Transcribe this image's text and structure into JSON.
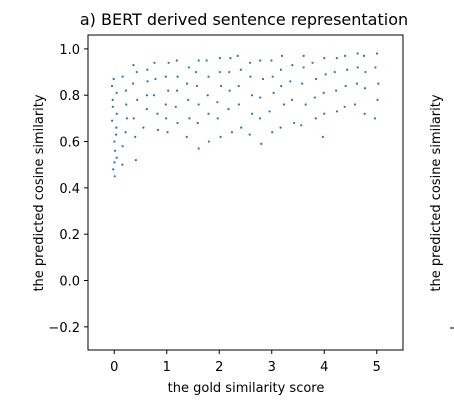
{
  "chart_data": {
    "type": "scatter",
    "title": "a) BERT derived sentence representation",
    "xlabel": "the gold similarity score",
    "ylabel": "the predicted cosine similarity",
    "xlim": [
      -0.5,
      5.5
    ],
    "ylim": [
      -0.3,
      1.06
    ],
    "xticks": [
      0,
      1,
      2,
      3,
      4,
      5
    ],
    "yticks": [
      -0.2,
      0.0,
      0.2,
      0.4,
      0.6,
      0.8,
      1.0
    ],
    "xtick_labels": [
      "0",
      "1",
      "2",
      "3",
      "4",
      "5"
    ],
    "ytick_labels": [
      "−0.2",
      "0.0",
      "0.2",
      "0.4",
      "0.6",
      "0.8",
      "1.0"
    ],
    "grid": false,
    "marker_color": "#1f77b4",
    "series": [
      {
        "points": [
          [
            0.0,
            0.45
          ],
          [
            0.0,
            0.48
          ],
          [
            0.0,
            0.51
          ],
          [
            0.0,
            0.53
          ],
          [
            0.0,
            0.56
          ],
          [
            0.0,
            0.6
          ],
          [
            0.0,
            0.63
          ],
          [
            0.0,
            0.66
          ],
          [
            0.0,
            0.69
          ],
          [
            0.0,
            0.72
          ],
          [
            0.0,
            0.75
          ],
          [
            0.0,
            0.78
          ],
          [
            0.0,
            0.81
          ],
          [
            0.0,
            0.84
          ],
          [
            0.0,
            0.87
          ],
          [
            0.2,
            0.5
          ],
          [
            0.2,
            0.58
          ],
          [
            0.2,
            0.64
          ],
          [
            0.2,
            0.7
          ],
          [
            0.2,
            0.76
          ],
          [
            0.2,
            0.82
          ],
          [
            0.2,
            0.88
          ],
          [
            0.4,
            0.52
          ],
          [
            0.4,
            0.62
          ],
          [
            0.4,
            0.7
          ],
          [
            0.4,
            0.78
          ],
          [
            0.4,
            0.85
          ],
          [
            0.4,
            0.9
          ],
          [
            0.4,
            0.93
          ],
          [
            0.6,
            0.66
          ],
          [
            0.6,
            0.74
          ],
          [
            0.6,
            0.8
          ],
          [
            0.6,
            0.86
          ],
          [
            0.6,
            0.91
          ],
          [
            0.8,
            0.65
          ],
          [
            0.8,
            0.72
          ],
          [
            0.8,
            0.8
          ],
          [
            0.8,
            0.87
          ],
          [
            0.8,
            0.94
          ],
          [
            1.0,
            0.64
          ],
          [
            1.0,
            0.7
          ],
          [
            1.0,
            0.76
          ],
          [
            1.0,
            0.82
          ],
          [
            1.0,
            0.88
          ],
          [
            1.0,
            0.94
          ],
          [
            1.2,
            0.68
          ],
          [
            1.2,
            0.75
          ],
          [
            1.2,
            0.82
          ],
          [
            1.2,
            0.88
          ],
          [
            1.2,
            0.95
          ],
          [
            1.4,
            0.62
          ],
          [
            1.4,
            0.7
          ],
          [
            1.4,
            0.78
          ],
          [
            1.4,
            0.85
          ],
          [
            1.4,
            0.92
          ],
          [
            1.6,
            0.57
          ],
          [
            1.6,
            0.68
          ],
          [
            1.6,
            0.76
          ],
          [
            1.6,
            0.84
          ],
          [
            1.6,
            0.9
          ],
          [
            1.6,
            0.95
          ],
          [
            1.8,
            0.6
          ],
          [
            1.8,
            0.72
          ],
          [
            1.8,
            0.8
          ],
          [
            1.8,
            0.88
          ],
          [
            1.8,
            0.95
          ],
          [
            2.0,
            0.62
          ],
          [
            2.0,
            0.7
          ],
          [
            2.0,
            0.77
          ],
          [
            2.0,
            0.84
          ],
          [
            2.0,
            0.9
          ],
          [
            2.0,
            0.96
          ],
          [
            2.2,
            0.64
          ],
          [
            2.2,
            0.74
          ],
          [
            2.2,
            0.82
          ],
          [
            2.2,
            0.9
          ],
          [
            2.2,
            0.96
          ],
          [
            2.4,
            0.66
          ],
          [
            2.4,
            0.76
          ],
          [
            2.4,
            0.84
          ],
          [
            2.4,
            0.91
          ],
          [
            2.4,
            0.97
          ],
          [
            2.6,
            0.63
          ],
          [
            2.6,
            0.72
          ],
          [
            2.6,
            0.8
          ],
          [
            2.6,
            0.88
          ],
          [
            2.6,
            0.94
          ],
          [
            2.8,
            0.59
          ],
          [
            2.8,
            0.7
          ],
          [
            2.8,
            0.79
          ],
          [
            2.8,
            0.87
          ],
          [
            2.8,
            0.95
          ],
          [
            3.0,
            0.64
          ],
          [
            3.0,
            0.73
          ],
          [
            3.0,
            0.81
          ],
          [
            3.0,
            0.88
          ],
          [
            3.0,
            0.95
          ],
          [
            3.2,
            0.66
          ],
          [
            3.2,
            0.76
          ],
          [
            3.2,
            0.84
          ],
          [
            3.2,
            0.91
          ],
          [
            3.2,
            0.97
          ],
          [
            3.4,
            0.68
          ],
          [
            3.4,
            0.78
          ],
          [
            3.4,
            0.86
          ],
          [
            3.4,
            0.93
          ],
          [
            3.6,
            0.67
          ],
          [
            3.6,
            0.76
          ],
          [
            3.6,
            0.85
          ],
          [
            3.6,
            0.92
          ],
          [
            3.6,
            0.97
          ],
          [
            3.8,
            0.7
          ],
          [
            3.8,
            0.79
          ],
          [
            3.8,
            0.87
          ],
          [
            3.8,
            0.94
          ],
          [
            4.0,
            0.62
          ],
          [
            4.0,
            0.72
          ],
          [
            4.0,
            0.81
          ],
          [
            4.0,
            0.89
          ],
          [
            4.0,
            0.96
          ],
          [
            4.2,
            0.73
          ],
          [
            4.2,
            0.82
          ],
          [
            4.2,
            0.9
          ],
          [
            4.2,
            0.96
          ],
          [
            4.4,
            0.75
          ],
          [
            4.4,
            0.84
          ],
          [
            4.4,
            0.91
          ],
          [
            4.4,
            0.97
          ],
          [
            4.6,
            0.76
          ],
          [
            4.6,
            0.85
          ],
          [
            4.6,
            0.92
          ],
          [
            4.6,
            0.98
          ],
          [
            4.8,
            0.72
          ],
          [
            4.8,
            0.83
          ],
          [
            4.8,
            0.9
          ],
          [
            4.8,
            0.97
          ],
          [
            5.0,
            0.7
          ],
          [
            5.0,
            0.78
          ],
          [
            5.0,
            0.85
          ],
          [
            5.0,
            0.92
          ],
          [
            5.0,
            0.98
          ]
        ]
      }
    ]
  },
  "side_panel": {
    "ylabel": "the predicted cosine similarity"
  }
}
